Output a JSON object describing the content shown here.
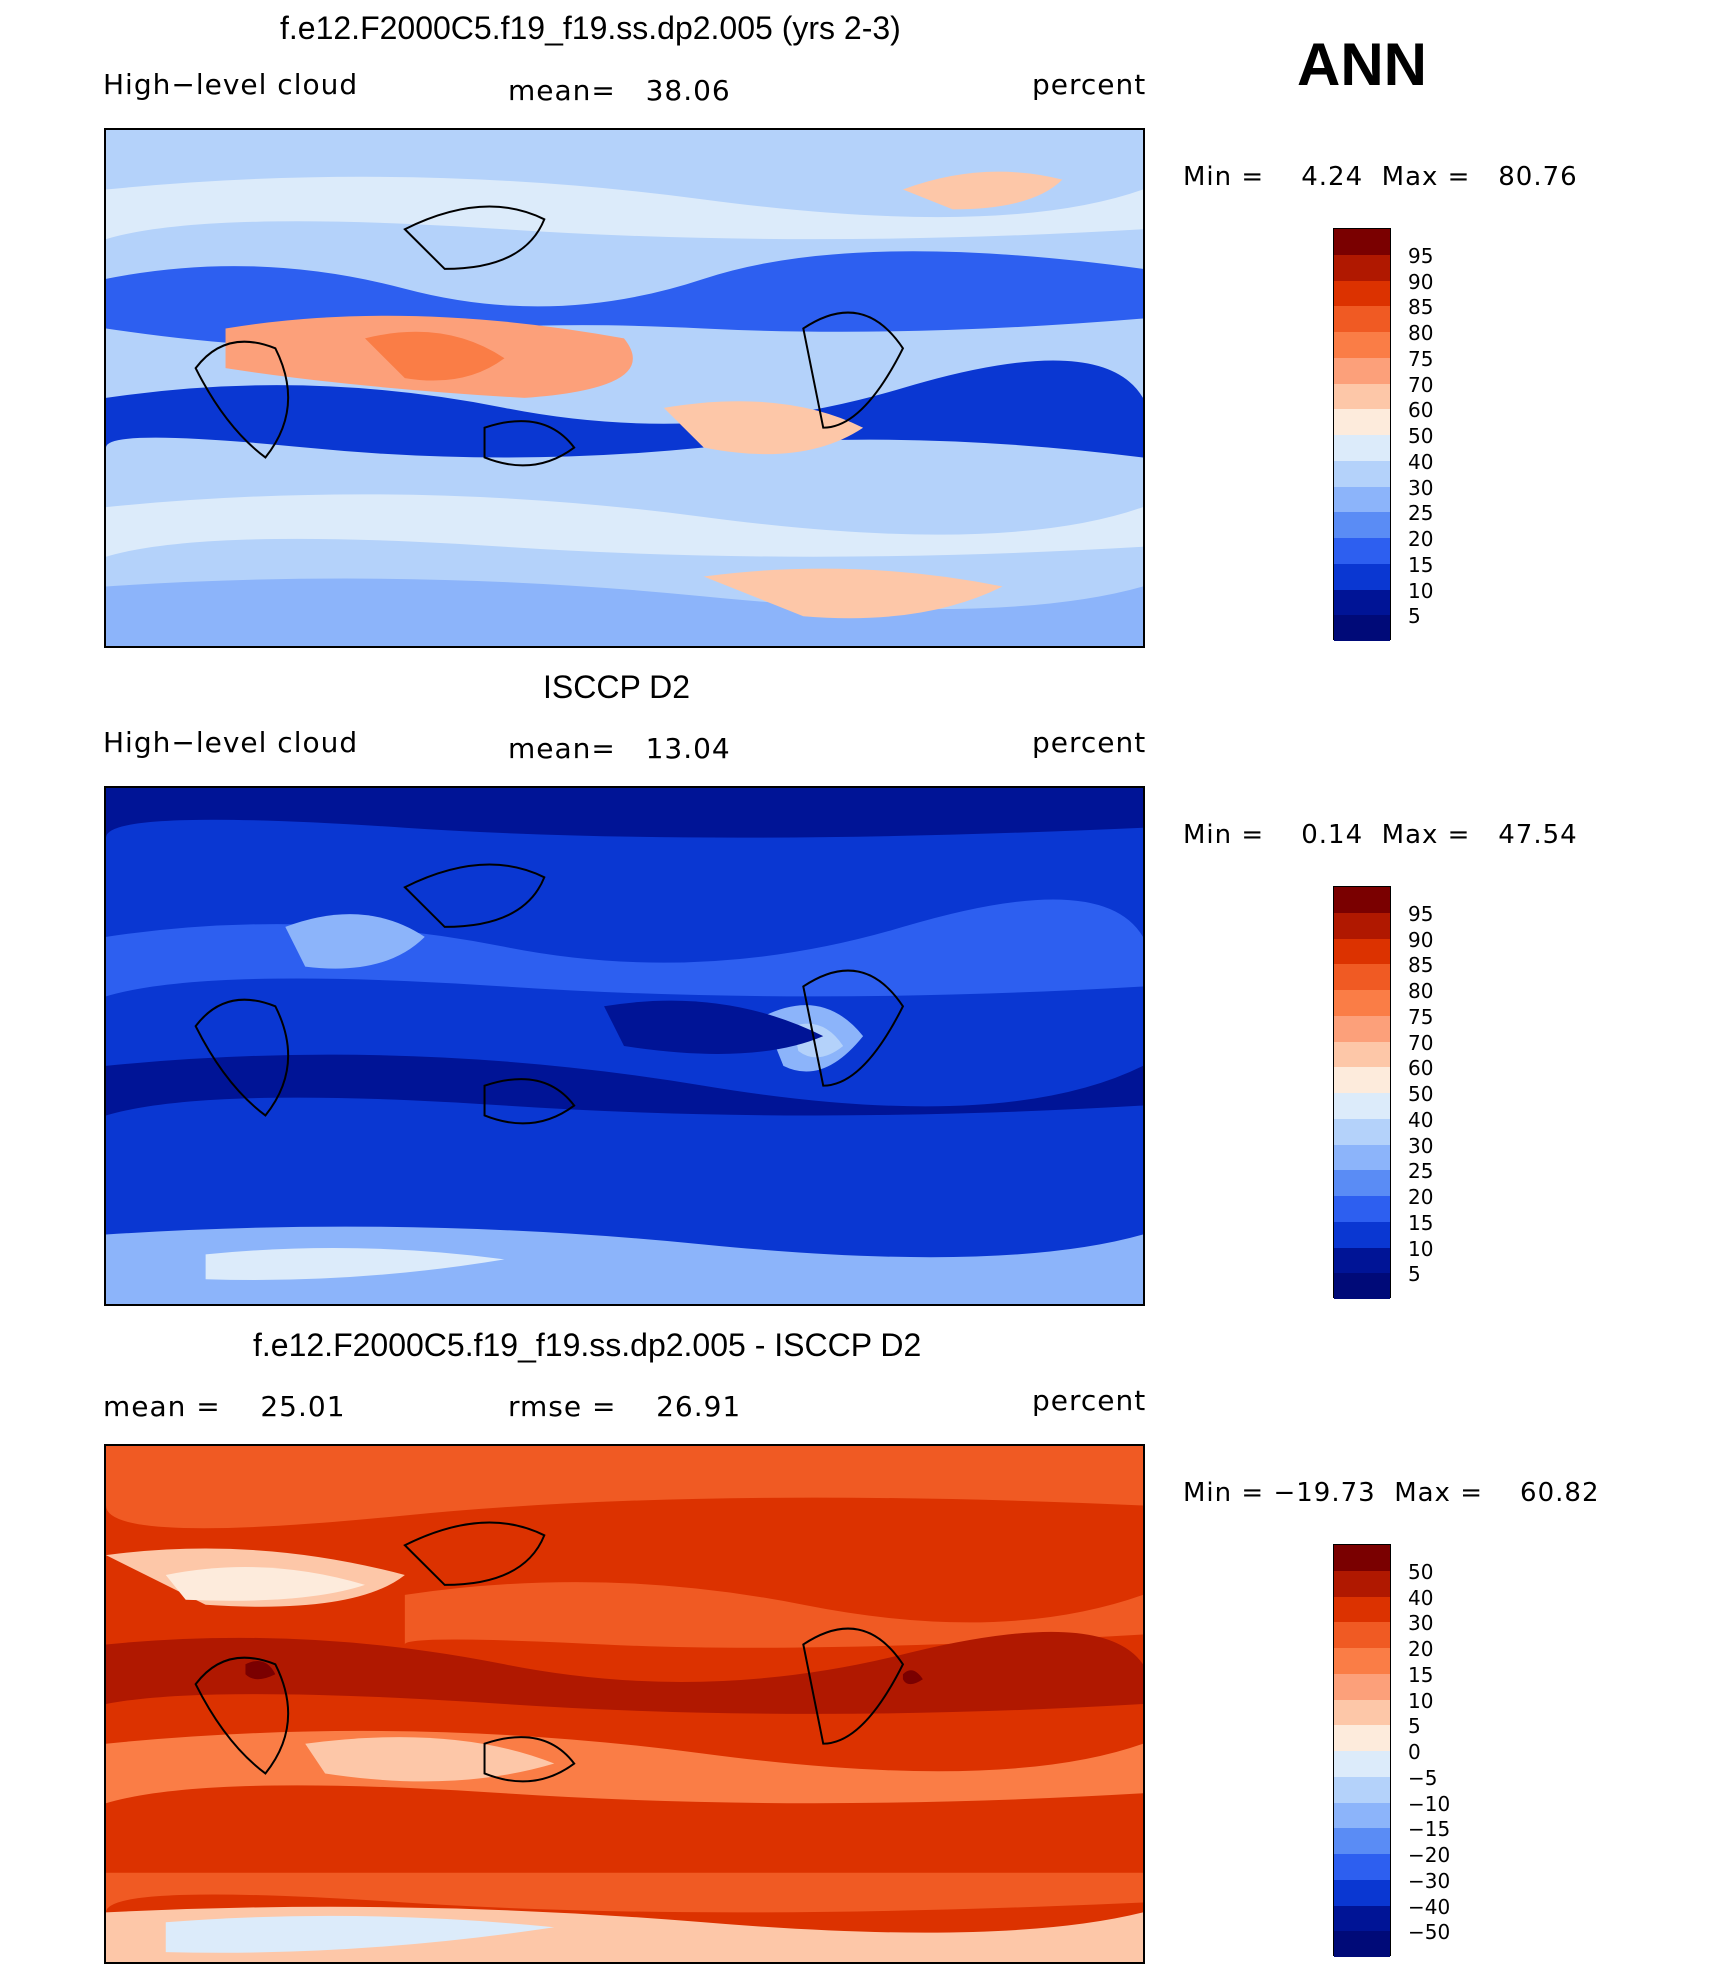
{
  "season": "ANN",
  "panels": [
    {
      "title": "f.e12.F2000C5.f19_f19.ss.dp2.005 (yrs 2-3)",
      "left_label": "High−level cloud",
      "center_label": "mean=   38.06",
      "right_label": "percent",
      "minmax": "Min =    4.24  Max =   80.76",
      "colorbar_labels": [
        "95",
        "90",
        "85",
        "80",
        "75",
        "70",
        "60",
        "50",
        "40",
        "30",
        "25",
        "20",
        "15",
        "10",
        "5"
      ]
    },
    {
      "title": "ISCCP D2",
      "left_label": "High−level cloud",
      "center_label": "mean=   13.04",
      "right_label": "percent",
      "minmax": "Min =    0.14  Max =   47.54",
      "colorbar_labels": [
        "95",
        "90",
        "85",
        "80",
        "75",
        "70",
        "60",
        "50",
        "40",
        "30",
        "25",
        "20",
        "15",
        "10",
        "5"
      ]
    },
    {
      "title": "f.e12.F2000C5.f19_f19.ss.dp2.005 - ISCCP D2",
      "left_label": "mean =    25.01",
      "center_label": "rmse =    26.91",
      "right_label": "percent",
      "minmax": "Min = −19.73  Max =    60.82",
      "colorbar_labels": [
        "50",
        "40",
        "30",
        "20",
        "15",
        "10",
        "5",
        "0",
        "−5",
        "−10",
        "−15",
        "−20",
        "−30",
        "−40",
        "−50"
      ]
    }
  ],
  "colors": {
    "abs_scale": [
      "#7a0000",
      "#b01800",
      "#dc3200",
      "#f05a23",
      "#fa7d46",
      "#fca07a",
      "#fdc7a8",
      "#fdebdc",
      "#dcebfa",
      "#b4d2fa",
      "#8cb4fa",
      "#5a8cf5",
      "#2d5ff0",
      "#0a37d2",
      "#001496",
      "#000a78"
    ],
    "diff_scale": [
      "#7a0000",
      "#b01800",
      "#dc3200",
      "#f05a23",
      "#fa7d46",
      "#fca07a",
      "#fdc7a8",
      "#fdebdc",
      "#dcebfa",
      "#b4d2fa",
      "#8cb4fa",
      "#5a8cf5",
      "#2d5ff0",
      "#0a37d2",
      "#001496",
      "#000a78"
    ]
  }
}
